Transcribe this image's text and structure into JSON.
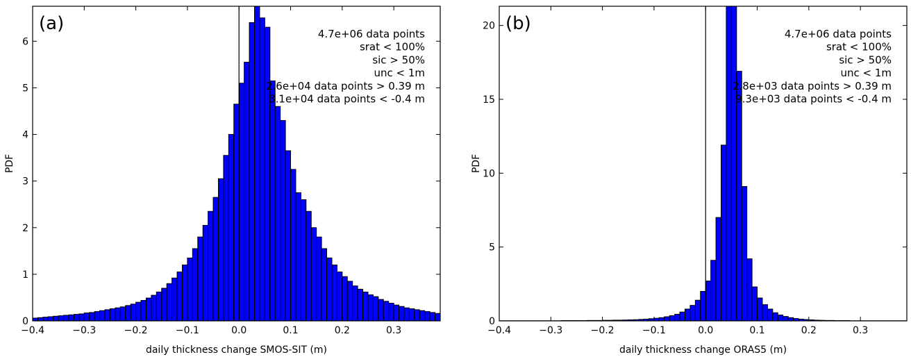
{
  "chart_data": [
    {
      "type": "bar",
      "panel_label": "(a)",
      "xlabel": "daily thickness change SMOS-SIT (m)",
      "ylabel": "PDF",
      "xlim": [
        -0.4,
        0.39
      ],
      "ylim": [
        0,
        6.75
      ],
      "xticks": [
        -0.4,
        -0.3,
        -0.2,
        -0.1,
        0.0,
        0.1,
        0.2,
        0.3
      ],
      "xtick_labels": [
        "−0.4",
        "−0.3",
        "−0.2",
        "−0.1",
        "0.0",
        "0.1",
        "0.2",
        "0.3"
      ],
      "yticks": [
        0,
        1,
        2,
        3,
        4,
        5,
        6
      ],
      "ytick_labels": [
        "0",
        "1",
        "2",
        "3",
        "4",
        "5",
        "6"
      ],
      "bin_width": 0.01,
      "bin_start": -0.4,
      "values": [
        0.06,
        0.07,
        0.08,
        0.09,
        0.1,
        0.11,
        0.12,
        0.13,
        0.14,
        0.15,
        0.17,
        0.18,
        0.2,
        0.22,
        0.24,
        0.26,
        0.28,
        0.3,
        0.33,
        0.36,
        0.4,
        0.44,
        0.49,
        0.55,
        0.62,
        0.7,
        0.8,
        0.92,
        1.05,
        1.2,
        1.35,
        1.55,
        1.8,
        2.05,
        2.35,
        2.65,
        3.05,
        3.55,
        4.0,
        4.65,
        5.1,
        5.55,
        6.4,
        7.5,
        6.5,
        6.3,
        5.15,
        4.6,
        4.3,
        3.65,
        3.25,
        2.75,
        2.6,
        2.35,
        2.0,
        1.8,
        1.55,
        1.35,
        1.2,
        1.05,
        0.95,
        0.85,
        0.75,
        0.68,
        0.62,
        0.56,
        0.52,
        0.46,
        0.42,
        0.38,
        0.34,
        0.31,
        0.28,
        0.26,
        0.24,
        0.22,
        0.2,
        0.18,
        0.16
      ],
      "vline_x": 0.0,
      "annotations": [
        "4.7e+06 data points",
        "srat < 100%",
        "sic > 50%",
        "unc < 1m",
        "2.6e+04 data points > 0.39 m",
        "3.1e+04 data points < -0.4 m"
      ],
      "bar_color": "#0000ff",
      "edge_color": "#000000"
    },
    {
      "type": "bar",
      "panel_label": "(b)",
      "xlabel": "daily thickness change ORAS5 (m)",
      "ylabel": "PDF",
      "xlim": [
        -0.4,
        0.39
      ],
      "ylim": [
        0,
        21.3
      ],
      "xticks": [
        -0.4,
        -0.3,
        -0.2,
        -0.1,
        0.0,
        0.1,
        0.2,
        0.3
      ],
      "xtick_labels": [
        "−0.4",
        "−0.3",
        "−0.2",
        "−0.1",
        "0.0",
        "0.1",
        "0.2",
        "0.3"
      ],
      "yticks": [
        0,
        5,
        10,
        15,
        20
      ],
      "ytick_labels": [
        "0",
        "5",
        "10",
        "15",
        "20"
      ],
      "bin_width": 0.01,
      "bin_start": -0.4,
      "values": [
        0.01,
        0.01,
        0.01,
        0.01,
        0.01,
        0.01,
        0.01,
        0.01,
        0.01,
        0.01,
        0.01,
        0.01,
        0.02,
        0.02,
        0.02,
        0.02,
        0.02,
        0.03,
        0.03,
        0.03,
        0.04,
        0.04,
        0.05,
        0.05,
        0.06,
        0.07,
        0.08,
        0.1,
        0.12,
        0.15,
        0.18,
        0.22,
        0.28,
        0.35,
        0.45,
        0.6,
        0.8,
        1.05,
        1.4,
        2.0,
        2.7,
        4.1,
        7.0,
        11.9,
        25.0,
        22.5,
        16.9,
        9.1,
        4.2,
        2.3,
        1.55,
        1.1,
        0.8,
        0.55,
        0.4,
        0.3,
        0.22,
        0.16,
        0.12,
        0.09,
        0.07,
        0.05,
        0.04,
        0.03,
        0.03,
        0.02,
        0.02,
        0.02,
        0.01,
        0.01,
        0.01,
        0.01,
        0.01,
        0.01,
        0.01,
        0.01,
        0.01,
        0.01,
        0.01
      ],
      "vline_x": 0.0,
      "annotations": [
        "4.7e+06 data points",
        "srat < 100%",
        "sic > 50%",
        "unc < 1m",
        "2.8e+03 data points > 0.39 m",
        "9.3e+03 data points < -0.4 m"
      ],
      "bar_color": "#0000ff",
      "edge_color": "#000000"
    }
  ]
}
